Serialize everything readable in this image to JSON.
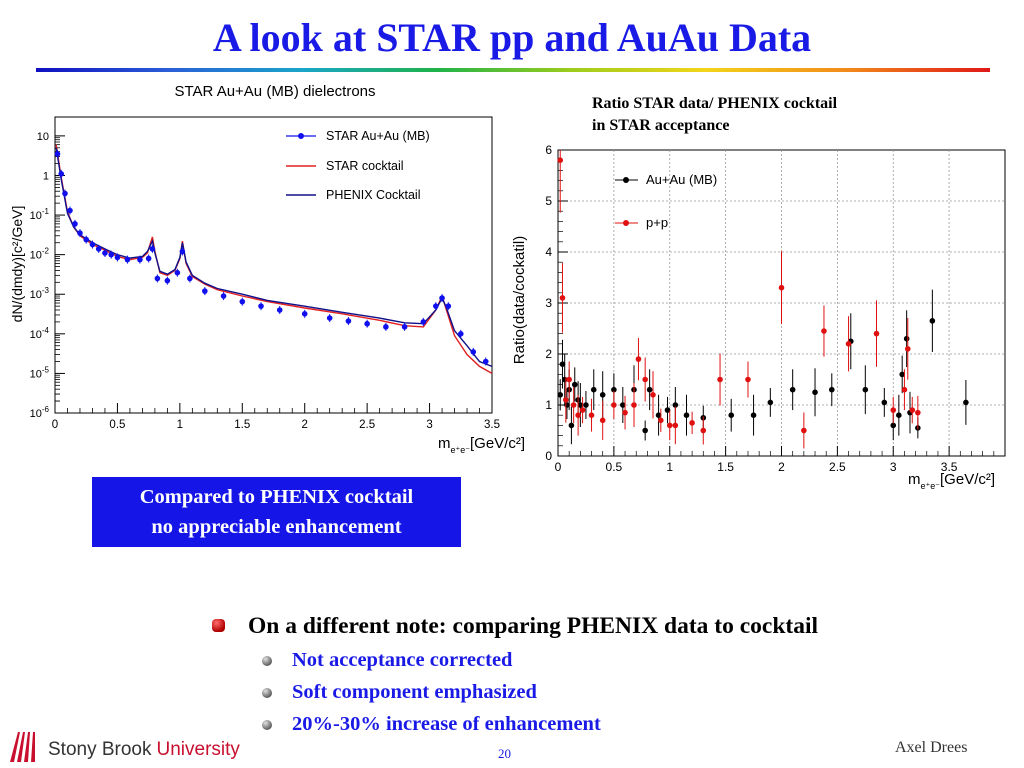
{
  "slide": {
    "title": "A look at STAR pp and AuAu Data",
    "right_note_line1": "Ratio STAR data/ PHENIX cocktail",
    "right_note_line2": "in STAR acceptance",
    "box_line1": "Compared to PHENIX cocktail",
    "box_line2": "no appreciable enhancement",
    "bullet_main": "On a different note: comparing PHENIX data to cocktail",
    "sub_bullets": [
      "Not acceptance corrected",
      "Soft component emphasized",
      "20%-30% increase of enhancement"
    ],
    "author": "Axel Drees",
    "page_number": "20",
    "logo_text_1": "Stony Brook",
    "logo_text_2": "University"
  },
  "colors": {
    "title": "#1a1ae6",
    "box_bg": "#1515e8",
    "star_data": "#1010ee",
    "star_cocktail": "#e02020",
    "phenix_cocktail": "#10108a",
    "pp": "#e01010",
    "auau": "#000000"
  },
  "chart_data": [
    {
      "type": "line",
      "title": "STAR Au+Au (MB) dielectrons",
      "ylabel": "dN/(dmdy)[c²/GeV]",
      "xlabel": "m",
      "xlabel_sub": "e⁺e⁻",
      "xlabel_unit": "[GeV/c²]",
      "xlim": [
        0,
        3.5
      ],
      "ylim": [
        1e-06,
        30
      ],
      "log_y": true,
      "x_ticks": [
        "0",
        "0.5",
        "1",
        "1.5",
        "2",
        "2.5",
        "3",
        "3.5"
      ],
      "y_ticks": [
        {
          "base": "10",
          "exp": ""
        },
        {
          "base": "1",
          "exp": ""
        },
        {
          "base": "10",
          "exp": "-1"
        },
        {
          "base": "10",
          "exp": "-2"
        },
        {
          "base": "10",
          "exp": "-3"
        },
        {
          "base": "10",
          "exp": "-4"
        },
        {
          "base": "10",
          "exp": "-5"
        },
        {
          "base": "10",
          "exp": "-6"
        }
      ],
      "legend": [
        "STAR Au+Au (MB)",
        "STAR cocktail",
        "PHENIX Cocktail"
      ],
      "legend_position": "top-right",
      "series": [
        {
          "name": "STAR Au+Au (MB)",
          "kind": "points",
          "x": [
            0.02,
            0.05,
            0.08,
            0.12,
            0.16,
            0.2,
            0.25,
            0.3,
            0.35,
            0.4,
            0.45,
            0.5,
            0.58,
            0.68,
            0.75,
            0.78,
            0.82,
            0.9,
            0.98,
            1.02,
            1.08,
            1.2,
            1.35,
            1.5,
            1.65,
            1.8,
            2.0,
            2.2,
            2.35,
            2.5,
            2.65,
            2.8,
            2.95,
            3.05,
            3.1,
            3.15,
            3.25,
            3.35,
            3.45
          ],
          "y": [
            3.5,
            1.1,
            0.35,
            0.13,
            0.06,
            0.035,
            0.024,
            0.018,
            0.014,
            0.011,
            0.01,
            0.0085,
            0.0075,
            0.0075,
            0.008,
            0.014,
            0.0025,
            0.0022,
            0.0035,
            0.012,
            0.0025,
            0.0012,
            0.0009,
            0.00065,
            0.0005,
            0.0004,
            0.00032,
            0.00025,
            0.00021,
            0.00018,
            0.00015,
            0.00015,
            0.0002,
            0.0005,
            0.0008,
            0.0005,
            0.0001,
            3.5e-05,
            2e-05
          ]
        },
        {
          "name": "STAR cocktail",
          "kind": "line",
          "x": [
            0.01,
            0.05,
            0.1,
            0.15,
            0.2,
            0.3,
            0.4,
            0.5,
            0.6,
            0.7,
            0.74,
            0.78,
            0.8,
            0.84,
            0.9,
            0.96,
            1.0,
            1.02,
            1.05,
            1.1,
            1.2,
            1.3,
            1.5,
            1.7,
            2.0,
            2.3,
            2.6,
            2.8,
            2.95,
            3.05,
            3.1,
            3.13,
            3.2,
            3.3,
            3.4,
            3.5
          ],
          "y": [
            6,
            0.9,
            0.12,
            0.05,
            0.03,
            0.018,
            0.013,
            0.009,
            0.0075,
            0.0085,
            0.011,
            0.028,
            0.012,
            0.0035,
            0.003,
            0.004,
            0.008,
            0.022,
            0.006,
            0.0028,
            0.0018,
            0.0013,
            0.0009,
            0.00065,
            0.00045,
            0.00032,
            0.00022,
            0.00016,
            0.00015,
            0.0004,
            0.0009,
            0.00045,
            9e-05,
            3e-05,
            1.5e-05,
            1e-05
          ]
        },
        {
          "name": "PHENIX Cocktail",
          "kind": "line",
          "x": [
            0.01,
            0.05,
            0.1,
            0.15,
            0.2,
            0.3,
            0.4,
            0.5,
            0.6,
            0.7,
            0.74,
            0.78,
            0.8,
            0.84,
            0.9,
            0.96,
            1.0,
            1.02,
            1.05,
            1.1,
            1.2,
            1.3,
            1.5,
            1.7,
            2.0,
            2.3,
            2.6,
            2.8,
            2.95,
            3.05,
            3.1,
            3.13,
            3.2,
            3.3,
            3.4,
            3.5
          ],
          "y": [
            5,
            0.8,
            0.11,
            0.05,
            0.032,
            0.02,
            0.014,
            0.01,
            0.0082,
            0.009,
            0.012,
            0.022,
            0.011,
            0.0038,
            0.0032,
            0.0042,
            0.0085,
            0.02,
            0.0065,
            0.003,
            0.0019,
            0.0014,
            0.001,
            0.0007,
            0.0005,
            0.00035,
            0.00025,
            0.00019,
            0.00018,
            0.0004,
            0.0008,
            0.0005,
            0.00012,
            5e-05,
            2e-05,
            1.5e-05
          ]
        }
      ]
    },
    {
      "type": "scatter",
      "ylabel": "Ratio(data/cockatil)",
      "xlabel": "m",
      "xlabel_sub": "e⁺e⁻",
      "xlabel_unit": "[GeV/c²]",
      "xlim": [
        0,
        4
      ],
      "ylim": [
        0,
        6
      ],
      "x_ticks": [
        "0",
        "0.5",
        "1",
        "1.5",
        "2",
        "2.5",
        "3",
        "3.5"
      ],
      "y_ticks": [
        "0",
        "1",
        "2",
        "3",
        "4",
        "5",
        "6"
      ],
      "grid": true,
      "legend": [
        "Au+Au (MB)",
        "p+p"
      ],
      "legend_position": "top-left",
      "series": [
        {
          "name": "Au+Au (MB)",
          "x": [
            0.02,
            0.04,
            0.06,
            0.08,
            0.1,
            0.12,
            0.15,
            0.18,
            0.2,
            0.25,
            0.32,
            0.4,
            0.5,
            0.58,
            0.68,
            0.78,
            0.82,
            0.9,
            0.98,
            1.05,
            1.15,
            1.3,
            1.55,
            1.75,
            1.9,
            2.1,
            2.3,
            2.45,
            2.62,
            2.75,
            2.92,
            3.0,
            3.05,
            3.08,
            3.12,
            3.15,
            3.22,
            3.35,
            3.65
          ],
          "y": [
            1.2,
            1.8,
            1.5,
            1.0,
            1.3,
            0.6,
            1.4,
            1.1,
            1.0,
            1.0,
            1.3,
            1.2,
            1.3,
            1.0,
            1.3,
            0.5,
            1.3,
            0.8,
            0.9,
            1.0,
            0.8,
            0.75,
            0.8,
            0.8,
            1.05,
            1.3,
            1.25,
            1.3,
            2.25,
            1.3,
            1.05,
            0.6,
            0.8,
            1.6,
            2.3,
            0.85,
            0.55,
            2.65,
            1.05
          ]
        },
        {
          "name": "p+p",
          "x": [
            0.02,
            0.04,
            0.07,
            0.1,
            0.14,
            0.18,
            0.22,
            0.3,
            0.4,
            0.5,
            0.6,
            0.68,
            0.72,
            0.78,
            0.85,
            0.92,
            1.0,
            1.05,
            1.2,
            1.3,
            1.45,
            1.7,
            2.0,
            2.2,
            2.38,
            2.6,
            2.85,
            3.0,
            3.1,
            3.13,
            3.17,
            3.22
          ],
          "y": [
            5.8,
            3.1,
            1.1,
            1.5,
            1.0,
            0.8,
            0.9,
            0.8,
            0.7,
            1.0,
            0.85,
            1.0,
            1.9,
            1.5,
            1.2,
            0.7,
            0.6,
            0.6,
            0.65,
            0.5,
            1.5,
            1.5,
            3.3,
            0.5,
            2.45,
            2.2,
            2.4,
            0.9,
            1.3,
            2.1,
            0.9,
            0.85
          ]
        }
      ]
    }
  ]
}
